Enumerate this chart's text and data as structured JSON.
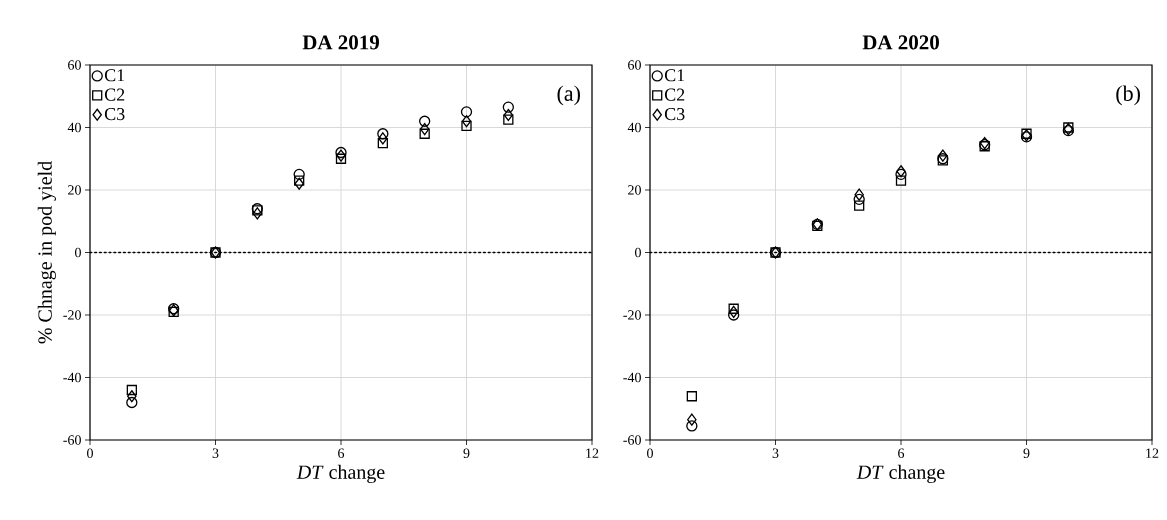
{
  "chart_data": [
    {
      "type": "scatter",
      "title": "DA 2019",
      "xlabel": "*DT* change",
      "ylabel": "% Chnage in pod yield",
      "annotations": [
        "(a)"
      ],
      "xlim": [
        0,
        12
      ],
      "xticks": [
        0,
        3,
        6,
        9,
        12
      ],
      "ylim": [
        -60,
        60
      ],
      "yticks": [
        -60,
        -40,
        -20,
        0,
        20,
        40,
        60
      ],
      "grid": true,
      "legend": "top left",
      "x": [
        1,
        2,
        3,
        4,
        5,
        6,
        7,
        8,
        9,
        10
      ],
      "ref_lines": [
        {
          "axis": "y",
          "value": 0,
          "line_style": "dotted",
          "color": "#000000"
        }
      ],
      "series": [
        {
          "name": "C1",
          "color": "#000000",
          "marker": "circle",
          "values": [
            -48,
            -18,
            0,
            14,
            25,
            32,
            38,
            42,
            45,
            46.5
          ]
        },
        {
          "name": "C2",
          "color": "#000000",
          "marker": "square",
          "values": [
            -44,
            -19,
            0,
            13.5,
            23,
            30,
            35,
            38,
            40.5,
            42.5
          ]
        },
        {
          "name": "C3",
          "color": "#000000",
          "marker": "diamond",
          "values": [
            -46,
            -18.5,
            0,
            12.5,
            22,
            31,
            36.5,
            39.5,
            42,
            44
          ]
        }
      ]
    },
    {
      "type": "scatter",
      "title": "DA 2020",
      "xlabel": "*DT* change",
      "annotations": [
        "(b)"
      ],
      "xlim": [
        0,
        12
      ],
      "xticks": [
        0,
        3,
        6,
        9,
        12
      ],
      "ylim": [
        -60,
        60
      ],
      "yticks": [
        -60,
        -40,
        -20,
        0,
        20,
        40,
        60
      ],
      "grid": true,
      "legend": "top left",
      "x": [
        1,
        2,
        3,
        4,
        5,
        6,
        7,
        8,
        9,
        10
      ],
      "ref_lines": [
        {
          "axis": "y",
          "value": 0,
          "line_style": "dotted",
          "color": "#000000"
        }
      ],
      "series": [
        {
          "name": "C1",
          "color": "#000000",
          "marker": "circle",
          "values": [
            -55.5,
            -20,
            0,
            9,
            17,
            25,
            30,
            34.5,
            37,
            39
          ]
        },
        {
          "name": "C2",
          "color": "#000000",
          "marker": "square",
          "values": [
            -46,
            -18,
            0,
            8.5,
            15,
            23,
            29.5,
            34,
            38,
            40
          ]
        },
        {
          "name": "C3",
          "color": "#000000",
          "marker": "diamond",
          "values": [
            -53.5,
            -19,
            0,
            9,
            18.5,
            26,
            31,
            35,
            37.5,
            39.5
          ]
        }
      ]
    }
  ]
}
